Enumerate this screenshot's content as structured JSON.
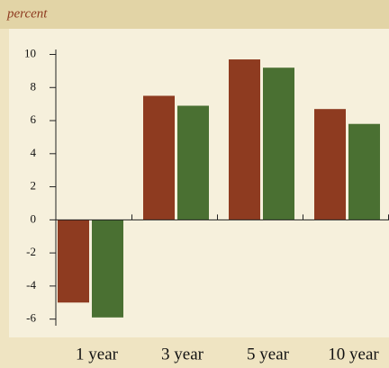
{
  "chart_data": {
    "type": "bar",
    "ylabel": "percent",
    "categories": [
      "1 year",
      "3 year",
      "5 year",
      "10 year"
    ],
    "series": [
      {
        "color": "#8e3b20",
        "values": [
          -5.0,
          7.5,
          9.7,
          6.7
        ]
      },
      {
        "color": "#4a7032",
        "values": [
          -5.9,
          6.9,
          9.2,
          5.8
        ]
      }
    ],
    "ylim": [
      -6.4,
      10.3
    ],
    "yticks": [
      -6,
      -4,
      -2,
      0,
      2,
      4,
      6,
      8,
      10
    ]
  }
}
